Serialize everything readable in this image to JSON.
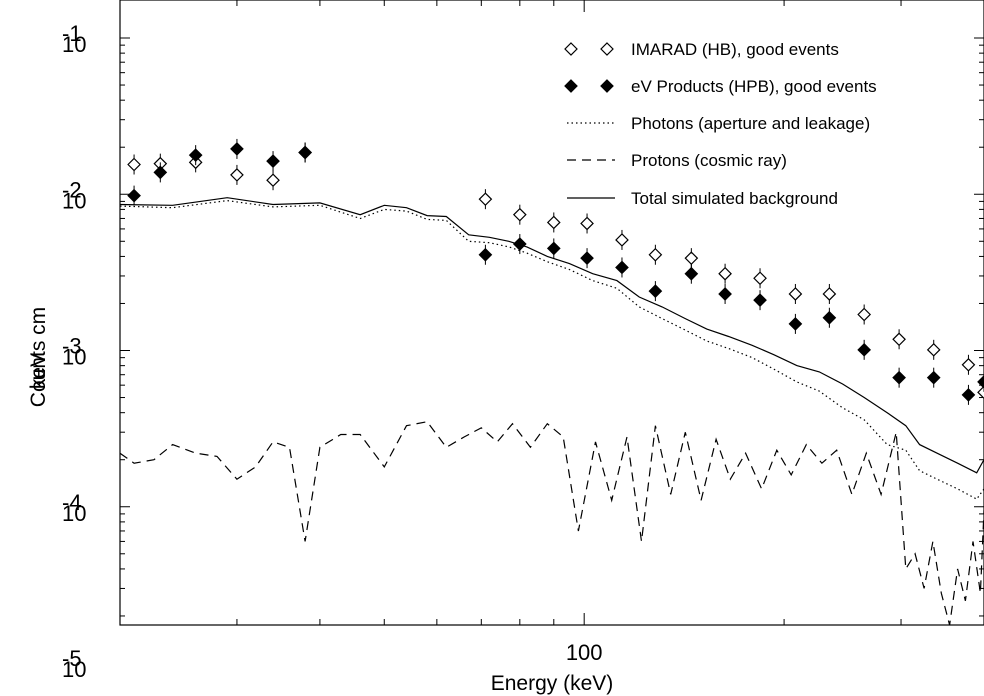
{
  "chart_data": {
    "type": "scatter",
    "xlabel": "Energy (keV)",
    "ylabel": "Counts cm",
    "ylabel_overprint": "keV",
    "x_scale": "log",
    "y_scale": "log",
    "xlim": [
      20,
      400
    ],
    "ylim": [
      1e-05,
      0.1
    ],
    "x_tick_labels": [
      {
        "value": 100,
        "label": "100"
      }
    ],
    "y_tick_labels": [
      {
        "value": 0.1,
        "base": "10",
        "exp": "-1"
      },
      {
        "value": 0.01,
        "base": "10",
        "exp": "-2"
      },
      {
        "value": 0.001,
        "base": "10",
        "exp": "-3"
      },
      {
        "value": 0.0001,
        "base": "10",
        "exp": "-4"
      },
      {
        "value": 1e-05,
        "base": "10",
        "exp": "-5"
      }
    ],
    "legend_position": "top-right",
    "series": [
      {
        "name": "IMARAD (HB), good events",
        "marker": "open-diamond",
        "x": [
          21,
          23,
          26,
          30,
          34,
          38,
          71,
          80,
          90,
          101,
          114,
          128,
          145,
          163,
          184,
          208,
          234,
          264,
          298,
          336,
          379,
          400
        ],
        "y": [
          0.0155,
          0.0157,
          0.016,
          0.0133,
          0.0123,
          0.0185,
          0.0093,
          0.0074,
          0.0066,
          0.0065,
          0.0051,
          0.0041,
          0.0039,
          0.0031,
          0.0029,
          0.0023,
          0.0023,
          0.0017,
          0.00118,
          0.00101,
          0.00081,
          0.00054
        ],
        "error_bars": true
      },
      {
        "name": "eV Products (HPB), good events",
        "marker": "filled-diamond",
        "x": [
          21,
          23,
          26,
          30,
          34,
          38,
          71,
          80,
          90,
          101,
          114,
          128,
          145,
          163,
          184,
          208,
          234,
          264,
          298,
          336,
          379,
          400
        ],
        "y": [
          0.0098,
          0.0138,
          0.0178,
          0.0195,
          0.0163,
          0.0185,
          0.0041,
          0.0048,
          0.0045,
          0.0039,
          0.0034,
          0.0024,
          0.0031,
          0.0023,
          0.0021,
          0.00148,
          0.00162,
          0.00101,
          0.00067,
          0.00067,
          0.00052,
          0.00063
        ],
        "error_bars": true
      },
      {
        "name": "Photons (aperture and leakage)",
        "line_style": "dotted",
        "x": [
          20,
          24,
          29,
          34,
          40,
          46,
          50,
          54,
          58,
          62,
          67,
          72,
          77,
          82,
          88,
          95,
          103,
          112,
          121,
          131,
          142,
          153,
          165,
          179,
          193,
          209,
          226,
          245,
          264,
          286,
          305,
          320,
          340,
          365,
          390,
          400
        ],
        "y": [
          0.0084,
          0.0082,
          0.0091,
          0.0083,
          0.0085,
          0.007,
          0.008,
          0.0078,
          0.0069,
          0.0068,
          0.005,
          0.0049,
          0.0046,
          0.0042,
          0.0037,
          0.0033,
          0.0028,
          0.0025,
          0.0019,
          0.0016,
          0.00135,
          0.00115,
          0.00103,
          0.0009,
          0.00076,
          0.00063,
          0.00055,
          0.00043,
          0.00036,
          0.00025,
          0.00023,
          0.00017,
          0.00015,
          0.00013,
          0.000112,
          0.00013
        ]
      },
      {
        "name": "Protons (cosmic ray)",
        "line_style": "dashed",
        "x": [
          20,
          21,
          22.5,
          24,
          26,
          28,
          30,
          32,
          34,
          36,
          38,
          40,
          43,
          46,
          50,
          54,
          58,
          62,
          66,
          70,
          74,
          78,
          83,
          88,
          93,
          98,
          104,
          110,
          116,
          122,
          128,
          135,
          142,
          150,
          158,
          166,
          175,
          185,
          195,
          205,
          216,
          228,
          240,
          253,
          266,
          280,
          295,
          305,
          315,
          325,
          335,
          345,
          355,
          365,
          375,
          385,
          395,
          400
        ],
        "y": [
          0.00022,
          0.00019,
          0.0002,
          0.00025,
          0.00022,
          0.00021,
          0.00015,
          0.00018,
          0.00026,
          0.00024,
          6e-05,
          0.00024,
          0.00029,
          0.00029,
          0.00018,
          0.00033,
          0.00035,
          0.00024,
          0.00028,
          0.00032,
          0.00026,
          0.00034,
          0.00024,
          0.00034,
          0.00028,
          7e-05,
          0.00026,
          0.00011,
          0.00028,
          6e-05,
          0.00033,
          0.00012,
          0.0003,
          0.00011,
          0.00027,
          0.00015,
          0.00022,
          0.00013,
          0.00023,
          0.00016,
          0.00025,
          0.00019,
          0.00023,
          0.00012,
          0.00022,
          0.00012,
          0.0003,
          4e-05,
          5e-05,
          3e-05,
          6e-05,
          2.8e-05,
          8e-06,
          4e-05,
          2.5e-05,
          6e-05,
          2.8e-05,
          9.5e-05
        ]
      },
      {
        "name": "Total simulated background",
        "line_style": "solid",
        "x": [
          20,
          24,
          29,
          34,
          40,
          46,
          50,
          54,
          58,
          62,
          67,
          72,
          77,
          82,
          88,
          95,
          103,
          112,
          121,
          131,
          142,
          153,
          165,
          179,
          193,
          209,
          226,
          245,
          264,
          286,
          305,
          320,
          340,
          365,
          390,
          400
        ],
        "y": [
          0.0086,
          0.0085,
          0.0095,
          0.0086,
          0.0088,
          0.0074,
          0.0085,
          0.0082,
          0.0073,
          0.0072,
          0.0055,
          0.0053,
          0.005,
          0.0046,
          0.004,
          0.0036,
          0.0031,
          0.0028,
          0.0022,
          0.0019,
          0.0016,
          0.00137,
          0.00123,
          0.00108,
          0.00094,
          0.0008,
          0.00073,
          0.00061,
          0.0005,
          0.0004,
          0.00033,
          0.00025,
          0.00022,
          0.00019,
          0.000165,
          0.0002
        ]
      }
    ]
  }
}
